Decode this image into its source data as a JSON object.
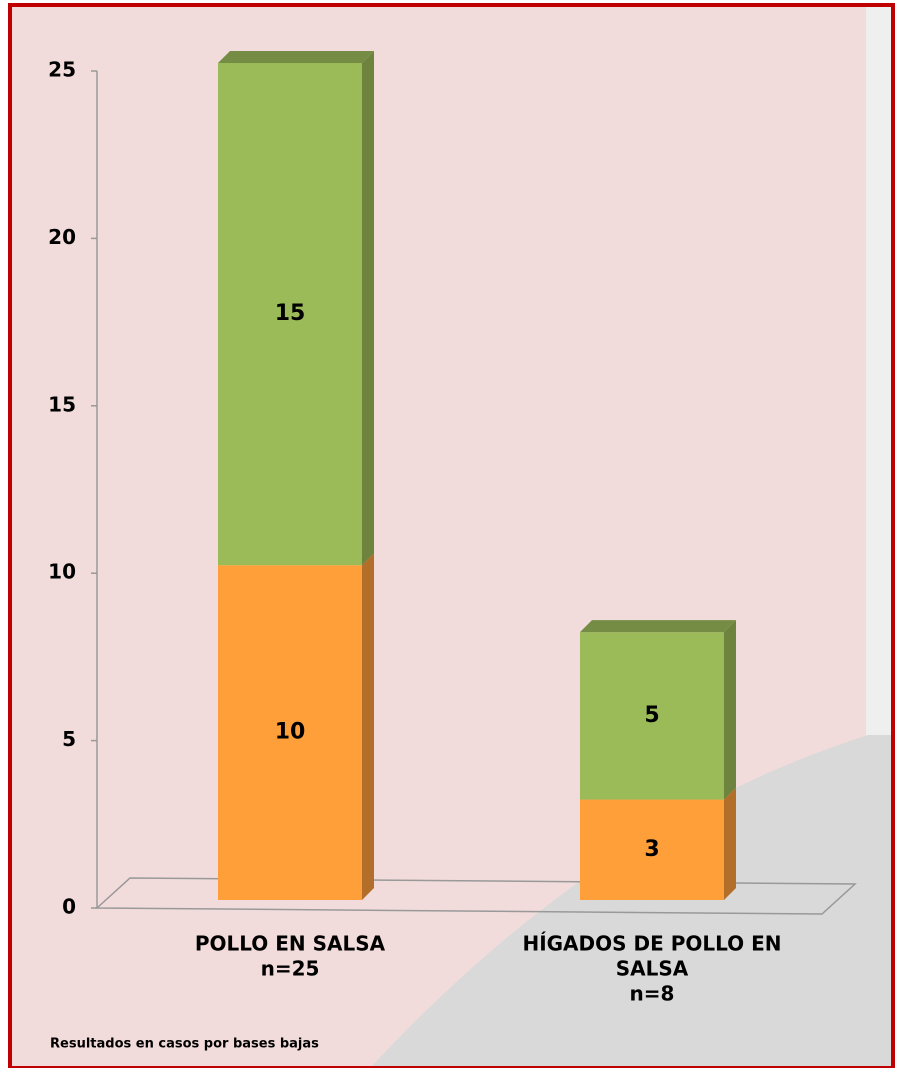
{
  "chart_data": {
    "type": "stacked_bar_3d",
    "categories": [
      [
        "POLLO EN SALSA",
        "n=25"
      ],
      [
        "HÍGADOS DE POLLO EN",
        "SALSA",
        "n=8"
      ]
    ],
    "series": [
      {
        "color": "#ff9f3a",
        "values": [
          10,
          3
        ]
      },
      {
        "color": "#9bbb59",
        "values": [
          15,
          5
        ]
      }
    ],
    "ylim": [
      0,
      25
    ],
    "yticks": [
      0,
      5,
      10,
      15,
      20,
      25
    ],
    "footnote": "Resultados en casos por bases bajas"
  }
}
